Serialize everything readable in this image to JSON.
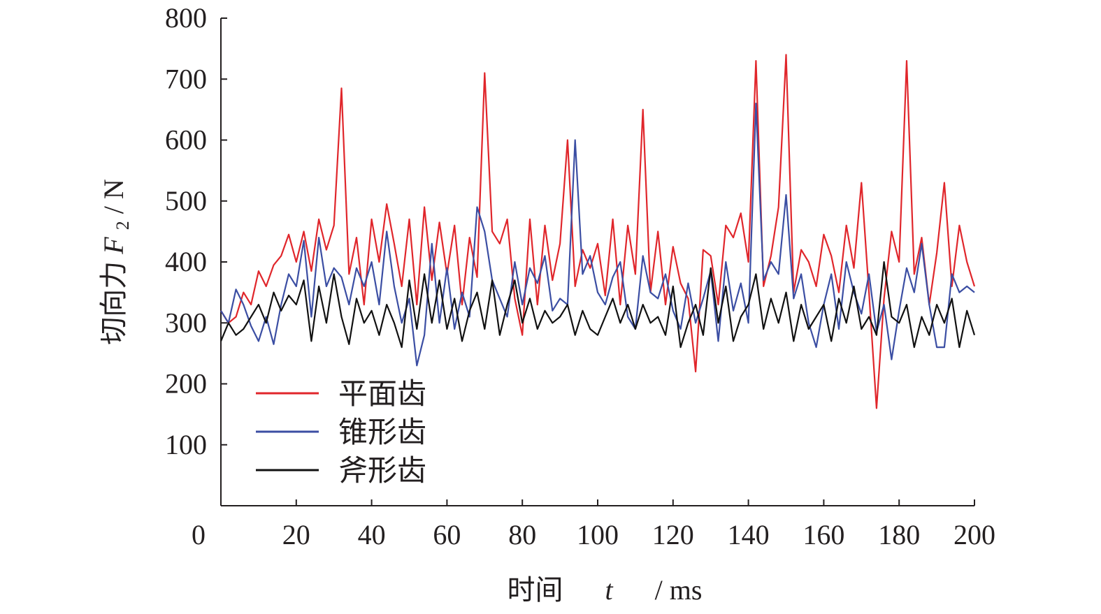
{
  "chart_data": {
    "type": "line",
    "title": "",
    "xlabel": "时间 t / ms",
    "xlabel_parts": {
      "prefix": "时间 ",
      "var": "t",
      "unit": " / ms"
    },
    "ylabel": "切向力 F2 / N",
    "ylabel_parts": {
      "prefix": "切向力 ",
      "var": "F",
      "sub": "2",
      "unit": " / N"
    },
    "xlim": [
      0,
      200
    ],
    "ylim": [
      0,
      800
    ],
    "x_ticks": [
      20,
      40,
      60,
      80,
      100,
      120,
      140,
      160,
      180,
      200
    ],
    "y_ticks": [
      100,
      200,
      300,
      400,
      500,
      600,
      700,
      800
    ],
    "origin_label": "0",
    "grid": false,
    "legend_position": "lower-left",
    "x": [
      0,
      2,
      4,
      6,
      8,
      10,
      12,
      14,
      16,
      18,
      20,
      22,
      24,
      26,
      28,
      30,
      32,
      34,
      36,
      38,
      40,
      42,
      44,
      46,
      48,
      50,
      52,
      54,
      56,
      58,
      60,
      62,
      64,
      66,
      68,
      70,
      72,
      74,
      76,
      78,
      80,
      82,
      84,
      86,
      88,
      90,
      92,
      94,
      96,
      98,
      100,
      102,
      104,
      106,
      108,
      110,
      112,
      114,
      116,
      118,
      120,
      122,
      124,
      126,
      128,
      130,
      132,
      134,
      136,
      138,
      140,
      142,
      144,
      146,
      148,
      150,
      152,
      154,
      156,
      158,
      160,
      162,
      164,
      166,
      168,
      170,
      172,
      174,
      176,
      178,
      180,
      182,
      184,
      186,
      188,
      190,
      192,
      194,
      196,
      198,
      200
    ],
    "series": [
      {
        "name": "平面齿",
        "color": "#e0262b",
        "values": [
          320,
          300,
          310,
          350,
          330,
          385,
          360,
          395,
          410,
          445,
          400,
          450,
          385,
          470,
          420,
          460,
          685,
          380,
          440,
          330,
          470,
          400,
          495,
          430,
          360,
          470,
          330,
          490,
          370,
          465,
          380,
          460,
          330,
          440,
          375,
          710,
          450,
          430,
          470,
          340,
          280,
          470,
          330,
          460,
          370,
          430,
          600,
          360,
          420,
          390,
          430,
          345,
          470,
          330,
          460,
          380,
          650,
          350,
          450,
          330,
          425,
          365,
          340,
          220,
          420,
          410,
          330,
          460,
          440,
          480,
          400,
          730,
          360,
          410,
          490,
          740,
          350,
          420,
          400,
          360,
          445,
          410,
          350,
          460,
          390,
          530,
          350,
          160,
          340,
          450,
          400,
          730,
          380,
          440,
          330,
          415,
          530,
          360,
          460,
          400,
          360
        ]
      },
      {
        "name": "锥形齿",
        "color": "#3b4ea3",
        "values": [
          320,
          300,
          355,
          330,
          295,
          270,
          310,
          265,
          330,
          380,
          360,
          435,
          310,
          440,
          360,
          390,
          375,
          330,
          390,
          360,
          400,
          330,
          450,
          360,
          300,
          340,
          230,
          280,
          430,
          300,
          390,
          290,
          350,
          310,
          490,
          450,
          370,
          340,
          310,
          400,
          330,
          390,
          365,
          410,
          320,
          340,
          330,
          600,
          380,
          410,
          350,
          330,
          375,
          400,
          310,
          290,
          410,
          350,
          340,
          380,
          320,
          290,
          365,
          300,
          340,
          385,
          270,
          400,
          320,
          365,
          300,
          660,
          370,
          400,
          380,
          510,
          340,
          380,
          300,
          260,
          330,
          380,
          290,
          400,
          350,
          315,
          380,
          285,
          330,
          240,
          320,
          390,
          350,
          430,
          330,
          260,
          260,
          380,
          350,
          360,
          350
        ]
      },
      {
        "name": "斧形齿",
        "color": "#111111",
        "values": [
          270,
          300,
          280,
          290,
          310,
          330,
          300,
          350,
          320,
          345,
          330,
          370,
          270,
          360,
          300,
          380,
          310,
          265,
          340,
          300,
          320,
          280,
          330,
          300,
          260,
          370,
          290,
          380,
          300,
          370,
          290,
          340,
          270,
          320,
          350,
          290,
          370,
          280,
          330,
          370,
          300,
          340,
          290,
          320,
          300,
          310,
          330,
          280,
          320,
          290,
          280,
          310,
          340,
          300,
          330,
          290,
          330,
          300,
          310,
          280,
          360,
          260,
          300,
          330,
          280,
          390,
          300,
          360,
          270,
          310,
          330,
          380,
          290,
          340,
          300,
          350,
          270,
          330,
          290,
          310,
          330,
          270,
          340,
          300,
          360,
          290,
          310,
          280,
          400,
          310,
          300,
          330,
          260,
          310,
          280,
          330,
          300,
          340,
          260,
          320,
          280
        ]
      }
    ]
  }
}
